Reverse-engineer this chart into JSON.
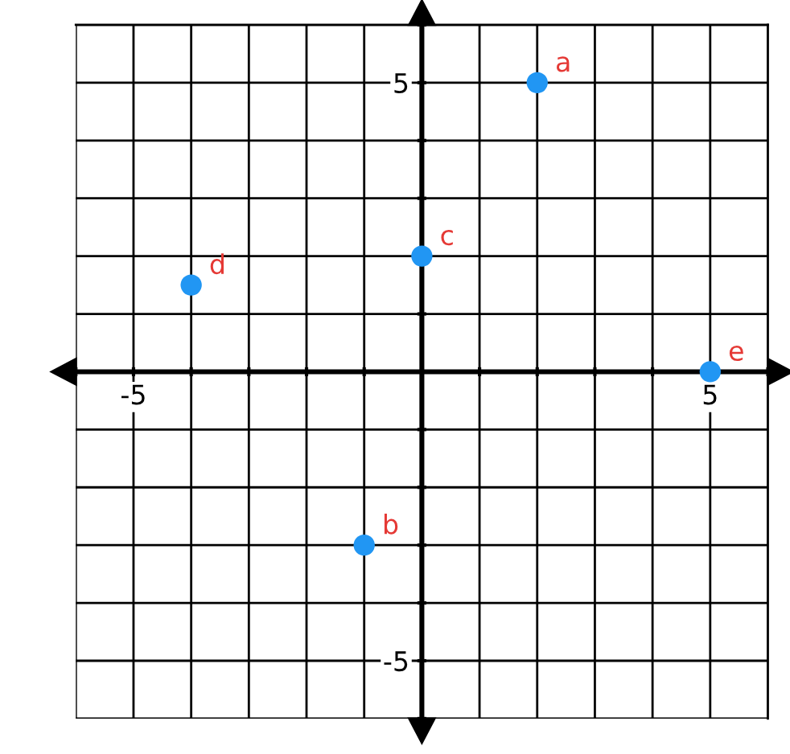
{
  "chart_data": {
    "type": "scatter",
    "x": [
      2,
      -1,
      0,
      -4,
      5
    ],
    "values": [
      5,
      -3,
      2,
      1.5,
      0
    ],
    "color": "#2196f3",
    "marker": "circle",
    "xlim": [
      -6,
      6
    ],
    "ylim": [
      -6,
      6
    ],
    "xticks": [
      {
        "value": -6,
        "label": null
      },
      -5,
      {
        "value": -4,
        "label": null
      },
      {
        "value": -3,
        "label": null
      },
      {
        "value": -2,
        "label": null
      },
      {
        "value": -1,
        "label": null
      },
      {
        "value": 0,
        "label": null
      },
      {
        "value": 1,
        "label": null
      },
      {
        "value": 2,
        "label": null
      },
      {
        "value": 3,
        "label": null
      },
      {
        "value": 4,
        "label": null
      },
      5,
      {
        "value": 6,
        "label": null
      }
    ],
    "yticks": [
      {
        "value": -6,
        "label": null
      },
      -5,
      {
        "value": -4,
        "label": null
      },
      {
        "value": -3,
        "label": null
      },
      {
        "value": -2,
        "label": null
      },
      {
        "value": -1,
        "label": null
      },
      {
        "value": 0,
        "label": null
      },
      {
        "value": 1,
        "label": null
      },
      {
        "value": 2,
        "label": null
      },
      {
        "value": 3,
        "label": null
      },
      {
        "value": 4,
        "label": null
      },
      5,
      {
        "value": 6,
        "label": null
      }
    ],
    "grid": true,
    "annotations": [
      {
        "text": "a",
        "x": 2,
        "y": 5
      },
      {
        "text": "b",
        "x": -1,
        "y": -3
      },
      {
        "text": "c",
        "x": 0,
        "y": 2
      },
      {
        "text": "d",
        "x": -4,
        "y": 1.5
      },
      {
        "text": "e",
        "x": 5,
        "y": 0
      }
    ]
  }
}
